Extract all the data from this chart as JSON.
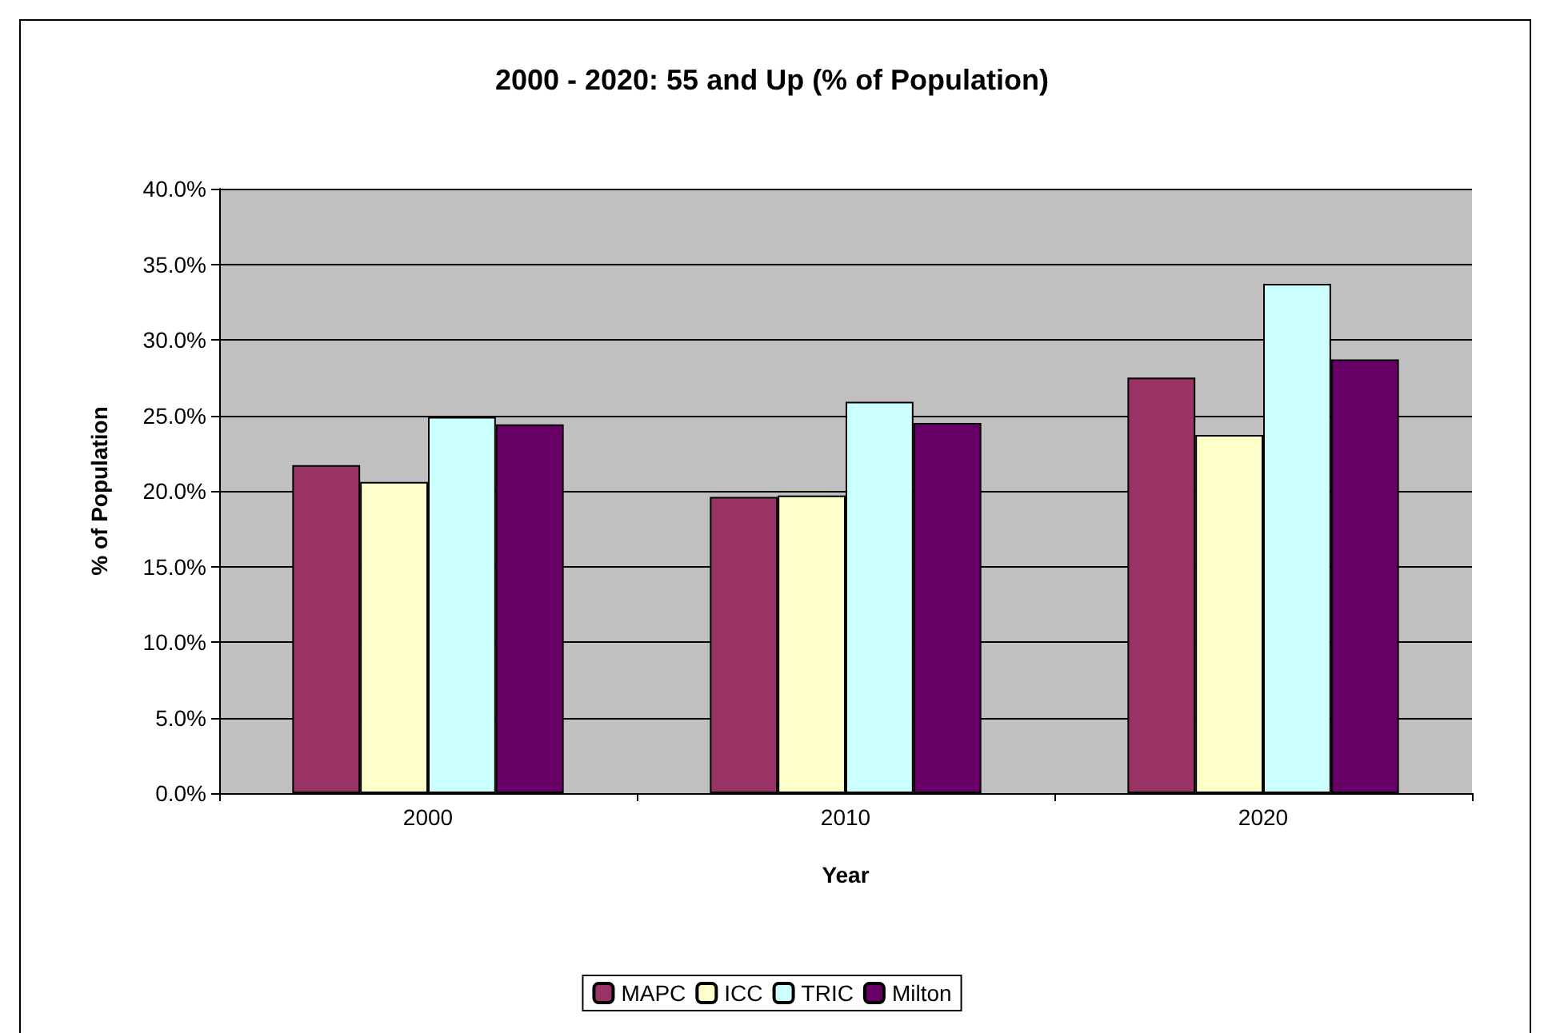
{
  "chart_data": {
    "type": "bar",
    "title": "2000 - 2020: 55 and Up (% of Population)",
    "xlabel": "Year",
    "ylabel": "% of Population",
    "categories": [
      "2000",
      "2010",
      "2020"
    ],
    "series": [
      {
        "name": "MAPC",
        "color": "#993366",
        "values": [
          21.7,
          19.6,
          27.5
        ]
      },
      {
        "name": "ICC",
        "color": "#ffffcc",
        "values": [
          20.6,
          19.7,
          23.7
        ]
      },
      {
        "name": "TRIC",
        "color": "#ccffff",
        "values": [
          24.9,
          25.9,
          33.7
        ]
      },
      {
        "name": "Milton",
        "color": "#660066",
        "values": [
          24.4,
          24.5,
          28.7
        ]
      }
    ],
    "ylim": [
      0,
      40
    ],
    "yticks": [
      {
        "value": 0,
        "label": "0.0%"
      },
      {
        "value": 5,
        "label": "5.0%"
      },
      {
        "value": 10,
        "label": "10.0%"
      },
      {
        "value": 15,
        "label": "15.0%"
      },
      {
        "value": 20,
        "label": "20.0%"
      },
      {
        "value": 25,
        "label": "25.0%"
      },
      {
        "value": 30,
        "label": "30.0%"
      },
      {
        "value": 35,
        "label": "35.0%"
      },
      {
        "value": 40,
        "label": "40.0%"
      }
    ],
    "grid": "y",
    "legend": "bottom"
  }
}
